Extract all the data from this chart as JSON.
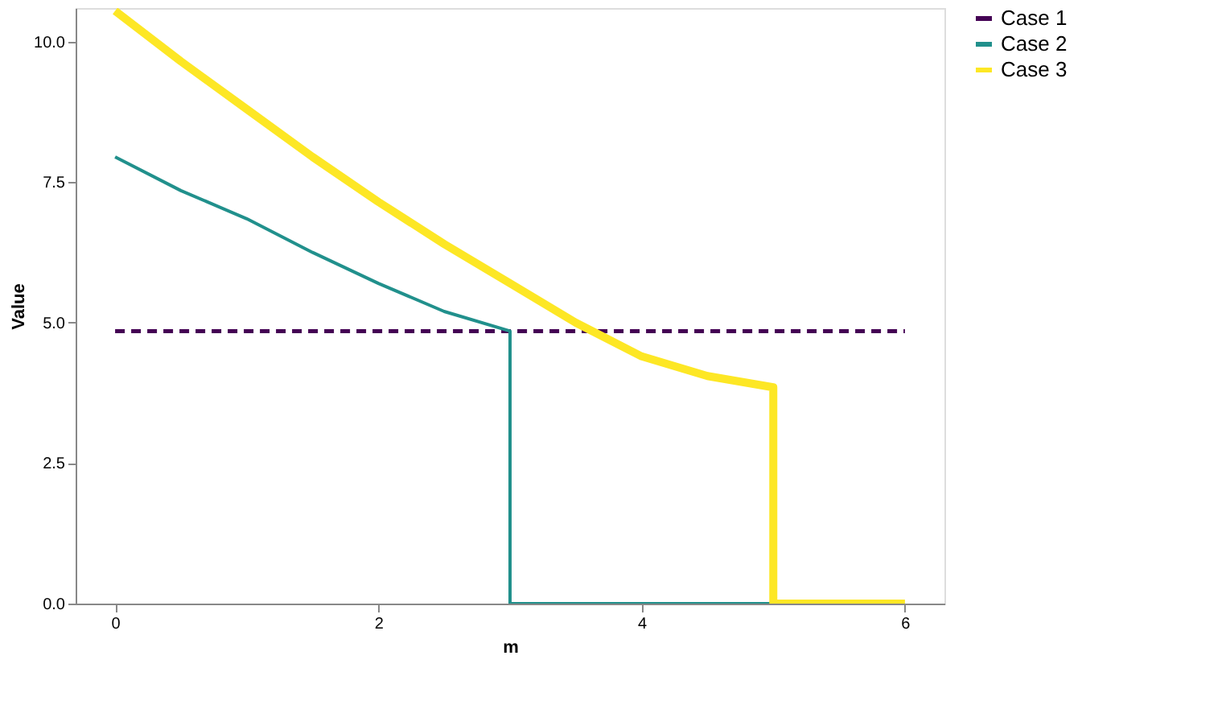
{
  "chart_data": {
    "type": "line",
    "xlabel": "m",
    "ylabel": "Value",
    "xlim": [
      -0.3,
      6.3
    ],
    "xticks": [
      0,
      2,
      4,
      6
    ],
    "ylim": [
      0,
      10.6
    ],
    "yticks": [
      {
        "value": 0,
        "label": "0.0"
      },
      {
        "value": 2.5,
        "label": "2.5"
      },
      {
        "value": 5,
        "label": "5.0"
      },
      {
        "value": 7.5,
        "label": "7.5"
      },
      {
        "value": 10,
        "label": "10.0"
      }
    ],
    "grid": false,
    "legend": "right",
    "series": [
      {
        "name": "Case 1",
        "color": "#440154",
        "line_style": "dashed",
        "x": [
          0,
          6
        ],
        "values": [
          4.85,
          4.85
        ]
      },
      {
        "name": "Case 2",
        "color": "#21908c",
        "line_style": "solid",
        "x": [
          0,
          0.5,
          1,
          1.5,
          2,
          2.5,
          3,
          3,
          5
        ],
        "values": [
          7.95,
          7.35,
          6.85,
          6.25,
          5.7,
          5.2,
          4.85,
          0,
          0
        ]
      },
      {
        "name": "Case 3",
        "color": "#fde725",
        "line_style": "solid",
        "x": [
          0,
          0.5,
          1,
          1.5,
          2,
          2.5,
          3,
          3.5,
          4,
          4.5,
          5,
          5,
          6
        ],
        "values": [
          10.55,
          9.65,
          8.8,
          7.95,
          7.15,
          6.4,
          5.7,
          5.0,
          4.4,
          4.05,
          3.85,
          0,
          0
        ]
      }
    ]
  }
}
